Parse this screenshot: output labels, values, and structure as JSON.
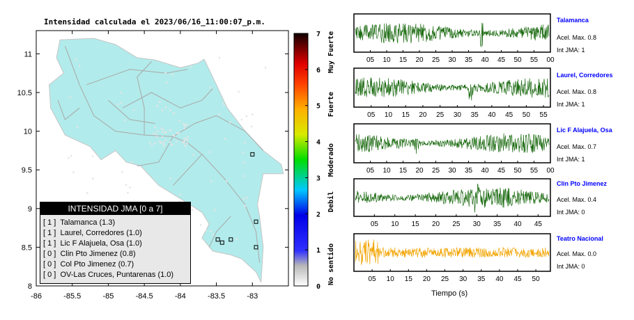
{
  "title": "Intensidad calculada el 2023/06/16_11:00:07_p.m.",
  "colors": {
    "land": "#b2ebeb",
    "station_wave_green": "#1a6a10",
    "station_wave_orange": "#f2a400",
    "name_blue": "#0000ff"
  },
  "chart_data": [
    {
      "type": "map",
      "title": "Intensidad calculada el 2023/06/16_11:00:07_p.m.",
      "x_ticks": [
        "-86",
        "-85.5",
        "-85",
        "-84.5",
        "-84",
        "-83.5",
        "-83"
      ],
      "y_ticks": [
        "11",
        "10.5",
        "10",
        "9.5",
        "9",
        "8.5",
        "8"
      ],
      "xlim": [
        -86,
        -82.5
      ],
      "ylim": [
        8,
        11.3
      ],
      "stations": [
        {
          "name": "Talamanca",
          "lon": -83.0,
          "lat": 9.7
        },
        {
          "name": "Laurel, Corredores",
          "lon": -82.95,
          "lat": 8.5
        },
        {
          "name": "Lic F Alajuela, Osa",
          "lon": -83.3,
          "lat": 8.6
        },
        {
          "name": "Clin Pto Jimenez",
          "lon": -83.42,
          "lat": 8.56
        },
        {
          "name": "Col Pto Jimenez",
          "lon": -83.48,
          "lat": 8.6
        },
        {
          "name": "OV-Las Cruces, Puntarenas",
          "lon": -82.95,
          "lat": 8.83
        }
      ]
    },
    {
      "type": "colorbar",
      "ticks": [
        "0",
        "1",
        "2",
        "3",
        "4",
        "5",
        "6",
        "7"
      ],
      "vmin": 0,
      "vmax": 7,
      "categories": [
        "No sentido",
        "Debil",
        "Moderado",
        "Fuerte",
        "Muy Fuerte"
      ]
    },
    {
      "type": "line",
      "xlabel": "Tiempo (s)",
      "series": [
        {
          "name": "Talamanca",
          "x_ticks": [
            "05",
            "10",
            "15",
            "20",
            "25",
            "30",
            "35",
            "40",
            "45",
            "50",
            "55",
            "00"
          ],
          "xlim": [
            0,
            60
          ],
          "peak_second": 39
        },
        {
          "name": "Laurel, Corredores",
          "x_ticks": [
            "05",
            "10",
            "15",
            "20",
            "25",
            "30",
            "35",
            "40",
            "45",
            "50",
            "55"
          ],
          "xlim": [
            0,
            57
          ],
          "peak_second": 34
        },
        {
          "name": "Lic F Alajuela, Osa",
          "x_ticks": [
            "05",
            "10",
            "15",
            "20",
            "25",
            "30",
            "35",
            "40",
            "45",
            "50",
            "55",
            "00"
          ],
          "xlim": [
            0,
            60
          ],
          "peak_second": 19
        },
        {
          "name": "Clin Pto Jimenez",
          "x_ticks": [
            "05",
            "10",
            "15",
            "20",
            "25",
            "30",
            "35",
            "40",
            "45"
          ],
          "xlim": [
            0,
            48
          ],
          "peak_second": 30
        },
        {
          "name": "Teatro Nacional",
          "x_ticks": [
            "05",
            "10",
            "15",
            "20",
            "25",
            "30",
            "35",
            "40",
            "45",
            "50"
          ],
          "xlim": [
            0,
            54
          ],
          "peak_second": 4
        }
      ]
    }
  ],
  "legend": {
    "header": "INTENSIDAD JMA [0 a 7]",
    "rows": [
      "[ 1 ]  Talamanca (1.3)",
      "[ 1 ]  Laurel, Corredores (1.0)",
      "[ 1 ]  Lic F Alajuela, Osa (1.0)",
      "[ 0 ]  Clin Pto Jimenez (0.8)",
      "[ 0 ]  Col Pto Jimenez (0.7)",
      "[ 0 ]  OV-Las Cruces, Puntarenas (1.0)"
    ]
  },
  "stations_panel": [
    {
      "name": "Talamanca",
      "acel": "Acel. Max. 0.8",
      "int": "Int JMA: 1"
    },
    {
      "name": "Laurel, Corredores",
      "acel": "Acel. Max. 0.8",
      "int": "Int JMA: 1"
    },
    {
      "name": "Lic F Alajuela, Osa",
      "acel": "Acel. Max. 0.7",
      "int": "Int JMA: 1"
    },
    {
      "name": "Clin Pto Jimenez",
      "acel": "Acel. Max. 0.4",
      "int": "Int JMA: 0"
    },
    {
      "name": "Teatro Nacional",
      "acel": "Acel. Max. 0.0",
      "int": "Int JMA: 0"
    }
  ]
}
